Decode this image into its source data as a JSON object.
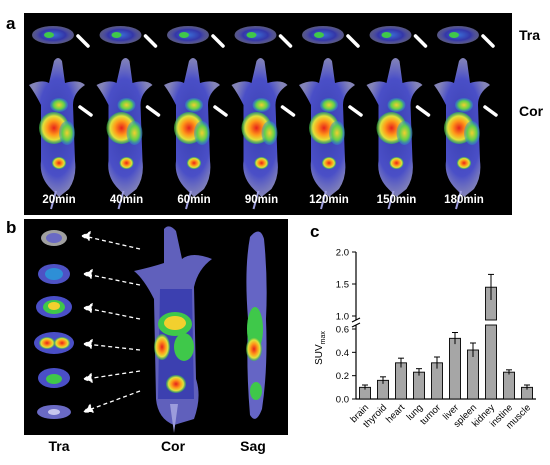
{
  "panels": {
    "a": "a",
    "b": "b",
    "c": "c"
  },
  "panel_a": {
    "time_points": [
      "20min",
      "40min",
      "60min",
      "90min",
      "120min",
      "150min",
      "180min"
    ],
    "row_labels": {
      "transverse": "Tra",
      "coronal": "Cor"
    }
  },
  "panel_b": {
    "view_labels": {
      "transverse": "Tra",
      "coronal": "Cor",
      "sagittal": "Sag"
    }
  },
  "colors": {
    "bar_fill": "#a6a6a6",
    "pet_low": "#1a1a7a",
    "pet_mid": "#2fbf4a",
    "pet_high": "#e6211b"
  },
  "chart_data": {
    "type": "bar",
    "title": "",
    "xlabel": "",
    "ylabel": "SUVmax",
    "ylabel_main": "SUV",
    "ylabel_sub": "max",
    "categories": [
      "brain",
      "thyroid",
      "heart",
      "lung",
      "tumor",
      "liver",
      "spleen",
      "kidney",
      "instine",
      "muscle"
    ],
    "values": [
      0.1,
      0.16,
      0.31,
      0.23,
      0.31,
      0.52,
      0.42,
      1.45,
      0.23,
      0.1
    ],
    "errors": [
      0.02,
      0.03,
      0.04,
      0.03,
      0.05,
      0.05,
      0.06,
      0.2,
      0.02,
      0.02
    ],
    "axis_break": {
      "lower_range": [
        0,
        0.6
      ],
      "upper_range": [
        1.0,
        2.0
      ]
    },
    "lower_ticks": [
      "0.0",
      "0.2",
      "0.4",
      "0.6"
    ],
    "upper_ticks": [
      "1.0",
      "1.5",
      "2.0"
    ],
    "lower_tick_values": [
      0,
      0.2,
      0.4,
      0.6
    ],
    "upper_tick_values": [
      1.0,
      1.5,
      2.0
    ]
  }
}
